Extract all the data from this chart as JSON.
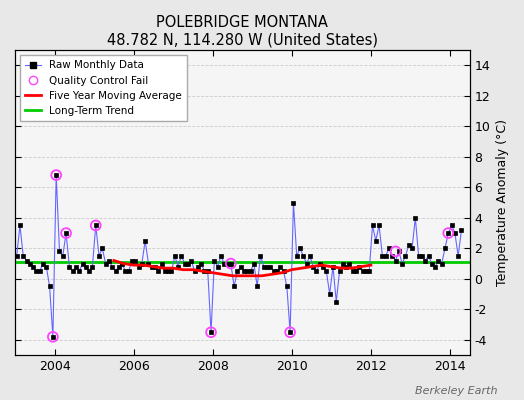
{
  "title": "POLEBRIDGE MONTANA",
  "subtitle": "48.782 N, 114.280 W (United States)",
  "ylabel_right": "Temperature Anomaly (°C)",
  "xlabel_bottom": "Berkeley Earth",
  "ylim": [
    -5,
    15
  ],
  "yticks": [
    -4,
    -2,
    0,
    2,
    4,
    6,
    8,
    10,
    12,
    14
  ],
  "xlim_start": 2003.0,
  "xlim_end": 2014.5,
  "background_color": "#e8e8e8",
  "raw_line_color": "#6666ff",
  "raw_marker_color": "#000000",
  "qc_fail_color": "#ff44ff",
  "moving_avg_color": "#ff0000",
  "trend_color": "#00cc00",
  "trend_y": 1.1,
  "raw_data_times": [
    2003.042,
    2003.125,
    2003.208,
    2003.292,
    2003.375,
    2003.458,
    2003.542,
    2003.625,
    2003.708,
    2003.792,
    2003.875,
    2003.958,
    2004.042,
    2004.125,
    2004.208,
    2004.292,
    2004.375,
    2004.458,
    2004.542,
    2004.625,
    2004.708,
    2004.792,
    2004.875,
    2004.958,
    2005.042,
    2005.125,
    2005.208,
    2005.292,
    2005.375,
    2005.458,
    2005.542,
    2005.625,
    2005.708,
    2005.792,
    2005.875,
    2005.958,
    2006.042,
    2006.125,
    2006.208,
    2006.292,
    2006.375,
    2006.458,
    2006.542,
    2006.625,
    2006.708,
    2006.792,
    2006.875,
    2006.958,
    2007.042,
    2007.125,
    2007.208,
    2007.292,
    2007.375,
    2007.458,
    2007.542,
    2007.625,
    2007.708,
    2007.792,
    2007.875,
    2007.958,
    2008.042,
    2008.125,
    2008.208,
    2008.292,
    2008.375,
    2008.458,
    2008.542,
    2008.625,
    2008.708,
    2008.792,
    2008.875,
    2008.958,
    2009.042,
    2009.125,
    2009.208,
    2009.292,
    2009.375,
    2009.458,
    2009.542,
    2009.625,
    2009.708,
    2009.792,
    2009.875,
    2009.958,
    2010.042,
    2010.125,
    2010.208,
    2010.292,
    2010.375,
    2010.458,
    2010.542,
    2010.625,
    2010.708,
    2010.792,
    2010.875,
    2010.958,
    2011.042,
    2011.125,
    2011.208,
    2011.292,
    2011.375,
    2011.458,
    2011.542,
    2011.625,
    2011.708,
    2011.792,
    2011.875,
    2011.958,
    2012.042,
    2012.125,
    2012.208,
    2012.292,
    2012.375,
    2012.458,
    2012.542,
    2012.625,
    2012.708,
    2012.792,
    2012.875,
    2012.958,
    2013.042,
    2013.125,
    2013.208,
    2013.292,
    2013.375,
    2013.458,
    2013.542,
    2013.625,
    2013.708,
    2013.792,
    2013.875,
    2013.958,
    2014.042,
    2014.125,
    2014.208,
    2014.292
  ],
  "raw_data_values": [
    1.5,
    3.5,
    1.5,
    1.2,
    1.0,
    0.8,
    0.5,
    0.5,
    1.0,
    0.8,
    -0.5,
    -3.8,
    6.8,
    1.8,
    1.5,
    3.0,
    0.8,
    0.5,
    0.8,
    0.5,
    1.0,
    0.8,
    0.5,
    0.8,
    3.5,
    1.5,
    2.0,
    1.0,
    1.2,
    0.8,
    0.5,
    0.8,
    1.0,
    0.5,
    0.5,
    1.2,
    1.2,
    0.8,
    1.0,
    2.5,
    1.0,
    0.8,
    0.8,
    0.5,
    1.0,
    0.5,
    0.5,
    0.5,
    1.5,
    0.8,
    1.5,
    1.0,
    1.0,
    1.2,
    0.5,
    0.8,
    1.0,
    0.5,
    0.5,
    -3.5,
    1.2,
    0.8,
    1.5,
    1.0,
    1.0,
    1.0,
    -0.5,
    0.5,
    0.8,
    0.5,
    0.5,
    0.5,
    1.0,
    -0.5,
    1.5,
    0.8,
    0.8,
    0.8,
    0.5,
    0.5,
    0.8,
    0.5,
    -0.5,
    -3.5,
    5.0,
    1.5,
    2.0,
    1.5,
    1.0,
    1.5,
    0.8,
    0.5,
    1.0,
    0.8,
    0.5,
    -1.0,
    0.8,
    -1.5,
    0.5,
    1.0,
    0.8,
    1.0,
    0.5,
    0.5,
    0.8,
    0.5,
    0.5,
    0.5,
    3.5,
    2.5,
    3.5,
    1.5,
    1.5,
    2.0,
    1.5,
    1.2,
    1.8,
    1.0,
    1.5,
    2.2,
    2.0,
    4.0,
    1.5,
    1.5,
    1.2,
    1.5,
    1.0,
    0.8,
    1.2,
    1.0,
    2.0,
    3.0,
    3.5,
    3.0,
    1.5,
    3.2
  ],
  "qc_fail_times": [
    2003.958,
    2004.042,
    2004.292,
    2005.042,
    2007.958,
    2008.458,
    2009.958,
    2012.625,
    2013.958
  ],
  "qc_fail_values": [
    -3.8,
    6.8,
    3.0,
    3.5,
    -3.5,
    1.0,
    -3.5,
    1.8,
    3.0
  ],
  "moving_avg_times": [
    2005.5,
    2005.75,
    2006.0,
    2006.25,
    2006.5,
    2006.75,
    2007.0,
    2007.25,
    2007.5,
    2007.75,
    2008.0,
    2008.25,
    2008.5,
    2008.75,
    2009.0,
    2009.25,
    2009.5,
    2009.75,
    2010.0,
    2010.25,
    2010.5,
    2010.75,
    2011.0,
    2011.25,
    2011.5,
    2011.75,
    2012.0
  ],
  "moving_avg_values": [
    1.2,
    1.0,
    0.9,
    0.9,
    0.8,
    0.7,
    0.7,
    0.6,
    0.6,
    0.5,
    0.4,
    0.3,
    0.2,
    0.2,
    0.2,
    0.2,
    0.3,
    0.4,
    0.6,
    0.7,
    0.8,
    0.9,
    0.8,
    0.7,
    0.7,
    0.8,
    0.9
  ],
  "grid_color": "#cccccc",
  "border_color": "#888888"
}
